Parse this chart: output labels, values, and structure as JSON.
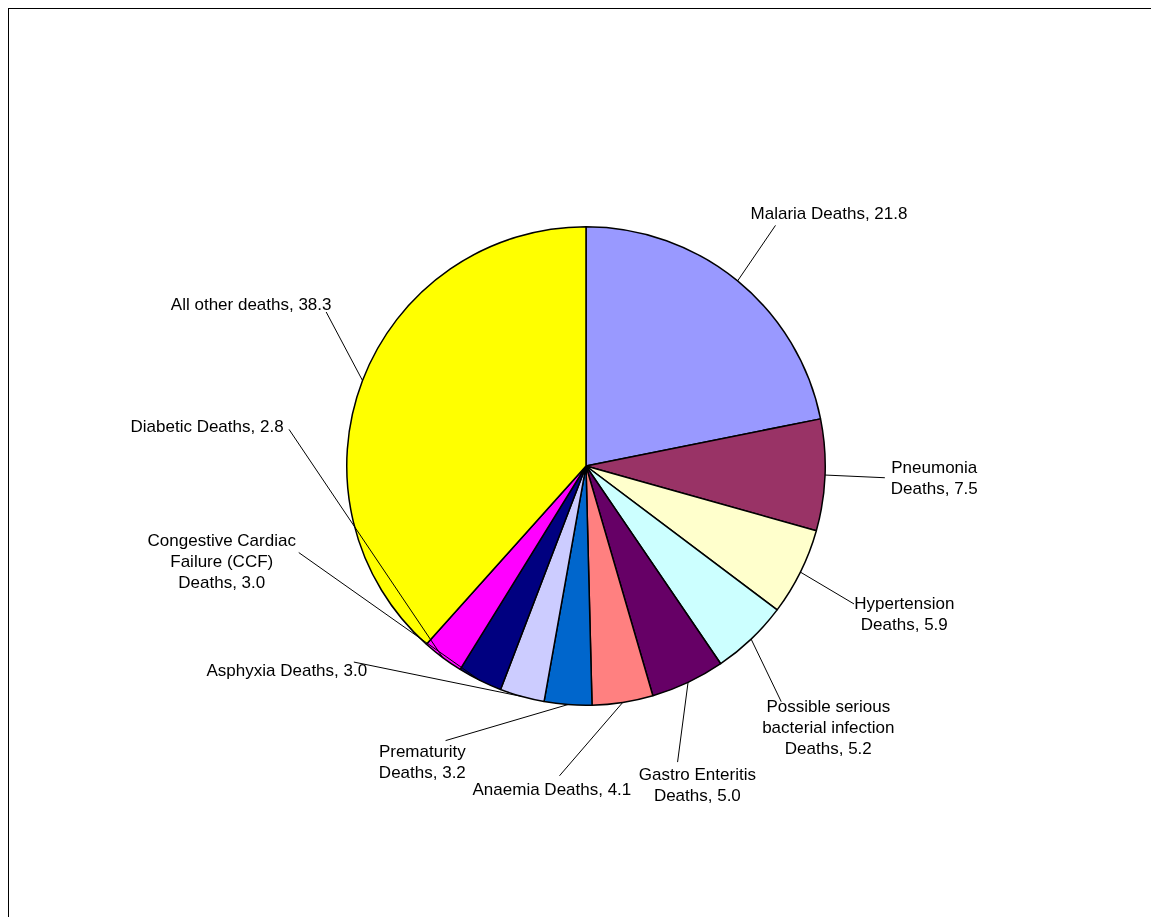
{
  "chart_data": {
    "type": "pie",
    "categories": [
      "Malaria Deaths",
      "Pneumonia Deaths",
      "Hypertension Deaths",
      "Possible serious bacterial infection Deaths",
      "Gastro Enteritis Deaths",
      "Anaemia Deaths",
      "Prematurity Deaths",
      "Asphyxia Deaths",
      "Congestive Cardiac Failure (CCF) Deaths",
      "Diabetic Deaths",
      "All other deaths"
    ],
    "values": [
      21.8,
      7.5,
      5.9,
      5.2,
      5.0,
      4.1,
      3.2,
      3.0,
      3.0,
      2.8,
      38.3
    ],
    "value_labels": [
      "21.8",
      "7.5",
      "5.9",
      "5.2",
      "5.0",
      "4.1",
      "3.2",
      "3.0",
      "3.0",
      "2.8",
      "38.3"
    ],
    "colors": [
      "#9999ff",
      "#993366",
      "#ffffcc",
      "#ccffff",
      "#660066",
      "#ff8080",
      "#0066cc",
      "#ccccff",
      "#000080",
      "#ff00ff",
      "#ffff00"
    ],
    "legend": false
  }
}
